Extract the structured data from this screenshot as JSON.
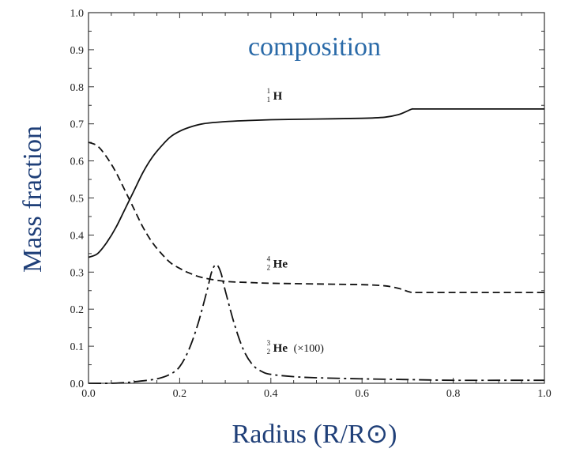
{
  "chart_data": {
    "type": "line",
    "title": "composition",
    "xlabel": "Radius (R/R⊙)",
    "ylabel": "Mass fraction",
    "xlim": [
      0.0,
      1.0
    ],
    "ylim": [
      0.0,
      1.0
    ],
    "xticks": [
      "0.0",
      "0.2",
      "0.4",
      "0.6",
      "0.8",
      "1.0"
    ],
    "yticks": [
      "0.0",
      "0.1",
      "0.2",
      "0.3",
      "0.4",
      "0.5",
      "0.6",
      "0.7",
      "0.8",
      "0.9",
      "1.0"
    ],
    "grid": false,
    "series": [
      {
        "name": "1H",
        "label_main": "H",
        "label_super": "1",
        "label_sub": "1",
        "label_note": "",
        "style": "solid",
        "x": [
          0.0,
          0.02,
          0.04,
          0.06,
          0.08,
          0.1,
          0.12,
          0.14,
          0.16,
          0.18,
          0.2,
          0.22,
          0.25,
          0.3,
          0.35,
          0.4,
          0.5,
          0.6,
          0.65,
          0.68,
          0.7,
          0.71,
          0.72,
          0.8,
          0.9,
          1.0
        ],
        "values": [
          0.34,
          0.35,
          0.38,
          0.42,
          0.47,
          0.52,
          0.57,
          0.61,
          0.64,
          0.665,
          0.68,
          0.69,
          0.7,
          0.706,
          0.709,
          0.711,
          0.713,
          0.715,
          0.718,
          0.725,
          0.735,
          0.74,
          0.74,
          0.74,
          0.74,
          0.74
        ]
      },
      {
        "name": "4He",
        "label_main": "He",
        "label_super": "4",
        "label_sub": "2",
        "label_note": "",
        "style": "dashed",
        "x": [
          0.0,
          0.02,
          0.04,
          0.06,
          0.08,
          0.1,
          0.12,
          0.14,
          0.16,
          0.18,
          0.2,
          0.22,
          0.25,
          0.3,
          0.35,
          0.4,
          0.5,
          0.6,
          0.65,
          0.68,
          0.7,
          0.71,
          0.72,
          0.8,
          0.9,
          1.0
        ],
        "values": [
          0.65,
          0.64,
          0.61,
          0.57,
          0.52,
          0.47,
          0.42,
          0.38,
          0.35,
          0.325,
          0.31,
          0.298,
          0.285,
          0.275,
          0.272,
          0.27,
          0.268,
          0.266,
          0.263,
          0.256,
          0.248,
          0.245,
          0.245,
          0.245,
          0.245,
          0.245
        ]
      },
      {
        "name": "3He",
        "label_main": "He",
        "label_super": "3",
        "label_sub": "2",
        "label_note": "(×100)",
        "style": "dashdot",
        "x": [
          0.0,
          0.05,
          0.08,
          0.1,
          0.15,
          0.18,
          0.2,
          0.22,
          0.24,
          0.26,
          0.27,
          0.28,
          0.29,
          0.3,
          0.32,
          0.34,
          0.36,
          0.38,
          0.4,
          0.45,
          0.5,
          0.6,
          0.7,
          0.8,
          0.9,
          1.0
        ],
        "values": [
          0.0,
          0.0,
          0.002,
          0.004,
          0.012,
          0.025,
          0.045,
          0.09,
          0.16,
          0.25,
          0.3,
          0.32,
          0.3,
          0.25,
          0.16,
          0.09,
          0.05,
          0.032,
          0.024,
          0.018,
          0.015,
          0.012,
          0.01,
          0.008,
          0.008,
          0.008
        ]
      }
    ]
  }
}
